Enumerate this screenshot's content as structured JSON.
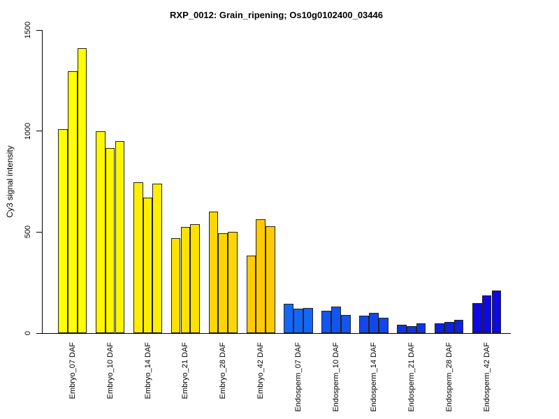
{
  "chart_data": {
    "type": "bar",
    "title": "RXP_0012: Grain_ripening; Os10g0102400_03446",
    "xlabel": "",
    "ylabel": "Cy3 signal intensity",
    "ylim": [
      0,
      1500
    ],
    "yticks": [
      0,
      500,
      1000,
      1500
    ],
    "grid": false,
    "legend_position": "none",
    "bars_per_group": 3,
    "bar_border_color": "#222222",
    "axis_color": "#000000",
    "background_color": "#ffffff",
    "groups": [
      {
        "label": "Embryo_07 DAF",
        "color": "#FFFF00",
        "values": [
          1010,
          1295,
          1410
        ]
      },
      {
        "label": "Embryo_10 DAF",
        "color": "#FFF800",
        "values": [
          1000,
          915,
          950
        ]
      },
      {
        "label": "Embryo_14 DAF",
        "color": "#FFEE00",
        "values": [
          745,
          670,
          740
        ]
      },
      {
        "label": "Embryo_21 DAF",
        "color": "#FFE100",
        "values": [
          470,
          525,
          540
        ]
      },
      {
        "label": "Embryo_28 DAF",
        "color": "#FFD500",
        "values": [
          600,
          495,
          500
        ]
      },
      {
        "label": "Embryo_42 DAF",
        "color": "#FFCB05",
        "values": [
          385,
          565,
          530
        ]
      },
      {
        "label": "Endosperm_07 DAF",
        "color": "#1467F5",
        "values": [
          145,
          120,
          125
        ]
      },
      {
        "label": "Endosperm_10 DAF",
        "color": "#1355EF",
        "values": [
          110,
          130,
          90
        ]
      },
      {
        "label": "Endosperm_14 DAF",
        "color": "#1147EB",
        "values": [
          85,
          100,
          75
        ]
      },
      {
        "label": "Endosperm_21 DAF",
        "color": "#1034E5",
        "values": [
          40,
          35,
          50
        ]
      },
      {
        "label": "Endosperm_28 DAF",
        "color": "#0D21E0",
        "values": [
          50,
          55,
          65
        ]
      },
      {
        "label": "Endosperm_42 DAF",
        "color": "#0E09E2",
        "values": [
          150,
          185,
          210
        ]
      }
    ]
  }
}
